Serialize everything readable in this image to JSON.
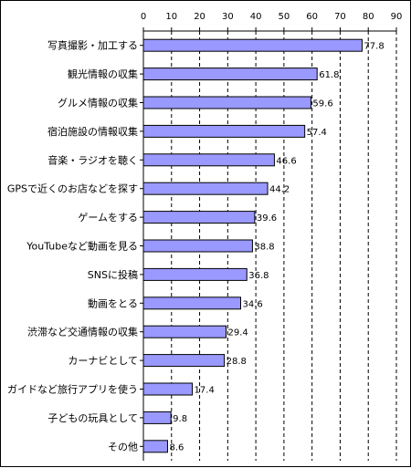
{
  "chart_data": {
    "type": "bar",
    "orientation": "horizontal",
    "categories": [
      "写真撮影・加工する",
      "観光情報の収集",
      "グルメ情報の収集",
      "宿泊施設の情報収集",
      "音楽・ラジオを聴く",
      "GPSで近くのお店などを探す",
      "ゲームをする",
      "YouTubeなど動画を見る",
      "SNSに投稿",
      "動画をとる",
      "渋滞など交通情報の収集",
      "カーナビとして",
      "ガイドなど旅行アプリを使う",
      "子どもの玩具として",
      "その他"
    ],
    "values": [
      77.8,
      61.8,
      59.6,
      57.4,
      46.6,
      44.2,
      39.6,
      38.8,
      36.8,
      34.6,
      29.4,
      28.8,
      17.4,
      9.8,
      8.6
    ],
    "value_labels": [
      "77.8",
      "61.8",
      "59.6",
      "57.4",
      "46.6",
      "44.2",
      "39.6",
      "38.8",
      "36.8",
      "34.6",
      "29.4",
      "28.8",
      "17.4",
      "9.8",
      "8.6"
    ],
    "xticks": [
      "0",
      "10",
      "20",
      "30",
      "40",
      "50",
      "60",
      "70",
      "80",
      "90"
    ],
    "xlim": [
      0,
      90
    ],
    "xaxis_position": "top",
    "grid": "vertical dashed",
    "bar_color": "#9999ff",
    "bar_edge_color": "#000000",
    "title": "",
    "xlabel": "",
    "ylabel": ""
  }
}
